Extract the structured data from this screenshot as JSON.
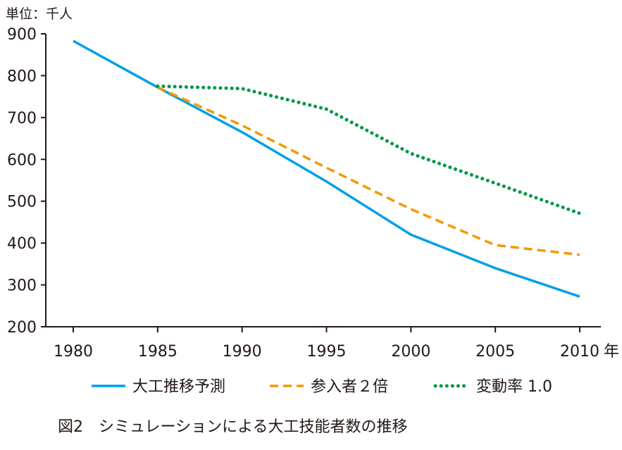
{
  "chart_data": {
    "type": "line",
    "unit_label": "単位：千人",
    "x": [
      1980,
      1985,
      1990,
      1995,
      2000,
      2005,
      2010
    ],
    "x_tick_labels": [
      "1980",
      "1985",
      "1990",
      "1995",
      "2000",
      "2005",
      "2010"
    ],
    "x_unit": "年",
    "ylim": [
      200,
      900
    ],
    "y_ticks": [
      200,
      300,
      400,
      500,
      600,
      700,
      800,
      900
    ],
    "grid": false,
    "legend_position": "bottom",
    "series": [
      {
        "name": "大工推移予測",
        "color": "#00a0e9",
        "style": "solid",
        "x": [
          1980,
          1985,
          1990,
          1995,
          2000,
          2005,
          2010
        ],
        "values": [
          883,
          772,
          665,
          547,
          420,
          340,
          272
        ]
      },
      {
        "name": "参入者２倍",
        "color": "#f39800",
        "style": "dashed",
        "x": [
          1985,
          1990,
          1995,
          2000,
          2005,
          2010
        ],
        "values": [
          772,
          681,
          580,
          481,
          395,
          372
        ]
      },
      {
        "name": "変動率 1.0",
        "color": "#009944",
        "style": "dotted",
        "x": [
          1985,
          1990,
          1995,
          2000,
          2005,
          2010
        ],
        "values": [
          775,
          769,
          720,
          614,
          543,
          471
        ]
      }
    ],
    "caption": "図2　シミュレーションによる大工技能者数の推移"
  }
}
